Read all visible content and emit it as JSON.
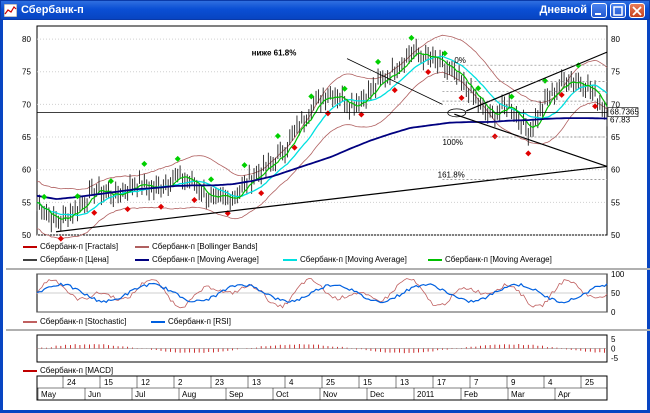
{
  "window": {
    "title": "Сбербанк-п",
    "period": "Дневной",
    "title_color": "#0845c2"
  },
  "icons": [
    "chart-app-icon",
    "minimize-icon",
    "maximize-icon",
    "close-icon"
  ],
  "price_panel": {
    "y_ticks": [
      "80",
      "75",
      "70",
      "65",
      "60",
      "55",
      "50"
    ],
    "current_price": "68.7365",
    "price_label_2": "67.83",
    "annotations": {
      "fib_label": "ниже 61.8%",
      "fib_0": "0%",
      "fib_100": "100%",
      "fib_1618": "161.8%"
    },
    "legend": [
      {
        "label": "Сбербанк-п [Fractals]",
        "color": "#c00000"
      },
      {
        "label": "Сбербанк-п [Bollinger Bands]",
        "color": "#b06060"
      },
      {
        "label": "Сбербанк-п [Цена]",
        "color": "#404040"
      },
      {
        "label": "Сбербанк-п [Moving Average]",
        "color": "#000080"
      },
      {
        "label": "Сбербанк-п [Moving Average]",
        "color": "#00e0e0"
      },
      {
        "label": "Сбербанк-п [Moving Average]",
        "color": "#00c000"
      }
    ]
  },
  "stoch_panel": {
    "y_ticks": [
      "100",
      "50",
      "0"
    ],
    "legend": [
      {
        "label": "Сбербанк-п [Stochastic]",
        "color": "#c06060"
      },
      {
        "label": "Сбербанк-п [RSI]",
        "color": "#0060e0"
      }
    ]
  },
  "macd_panel": {
    "y_ticks": [
      "5",
      "0",
      "-5"
    ],
    "legend": [
      {
        "label": "Сбербанк-п [MACD]",
        "color": "#c00000"
      }
    ]
  },
  "x_axis": {
    "days": [
      "24",
      "15",
      "12",
      "2",
      "23",
      "13",
      "4",
      "25",
      "15",
      "13",
      "17",
      "7",
      "9",
      "4",
      "25"
    ],
    "months": [
      "May",
      "Jun",
      "Jul",
      "Aug",
      "Sep",
      "Oct",
      "Nov",
      "Dec",
      "2011",
      "Feb",
      "Mar",
      "Apr"
    ]
  },
  "chart_data": {
    "type": "line",
    "title": "Сбербанк-п",
    "series": [
      {
        "name": "Сбербанк-п [Цена]",
        "values": [
          55,
          52,
          54,
          57,
          56,
          58,
          57,
          59,
          58,
          55,
          56,
          59,
          61,
          65,
          70,
          72,
          70,
          72,
          75,
          78,
          77,
          75,
          72,
          68,
          70,
          66,
          71,
          74,
          73,
          68.7365
        ]
      },
      {
        "name": "Сбербанк-п [Moving Average]",
        "values": [
          56,
          55.5,
          55.8,
          56.2,
          56.6,
          57,
          57.2,
          57.5,
          57.6,
          57.6,
          57.8,
          58.3,
          59,
          60,
          61,
          62,
          63.3,
          64.5,
          65.5,
          66.4,
          66.8,
          67.2,
          67.3,
          67.3,
          67.5,
          67.6,
          67.8,
          67.9,
          67.9,
          67.83
        ]
      }
    ],
    "ylim": [
      50,
      82
    ]
  }
}
